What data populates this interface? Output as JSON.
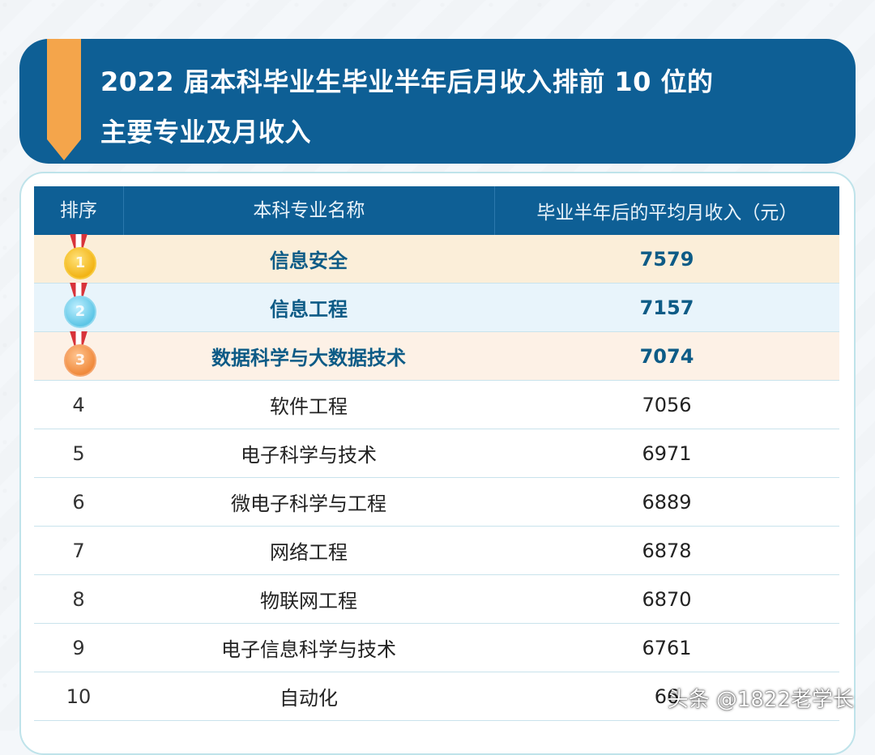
{
  "header": {
    "title_line1": "2022 届本科毕业生毕业半年后月收入排前 10 位的",
    "title_line2": "主要专业及月收入"
  },
  "table": {
    "columns": [
      "排序",
      "本科专业名称",
      "毕业半年后的平均月收入（元）"
    ],
    "rows": [
      {
        "rank": "1",
        "major": "信息安全",
        "income": "7579"
      },
      {
        "rank": "2",
        "major": "信息工程",
        "income": "7157"
      },
      {
        "rank": "3",
        "major": "数据科学与大数据技术",
        "income": "7074"
      },
      {
        "rank": "4",
        "major": "软件工程",
        "income": "7056"
      },
      {
        "rank": "5",
        "major": "电子科学与技术",
        "income": "6971"
      },
      {
        "rank": "6",
        "major": "微电子科学与工程",
        "income": "6889"
      },
      {
        "rank": "7",
        "major": "网络工程",
        "income": "6878"
      },
      {
        "rank": "8",
        "major": "物联网工程",
        "income": "6870"
      },
      {
        "rank": "9",
        "major": "电子信息科学与技术",
        "income": "6761"
      },
      {
        "rank": "10",
        "major": "自动化",
        "income": "66"
      }
    ]
  },
  "watermark": "头条 @1822老学长",
  "colors": {
    "header_bg": "#0e5f95",
    "ribbon": "#f4a54b",
    "highlight_text": "#0d5b86",
    "row1_bg": "#fbeed9",
    "row2_bg": "#e8f4fb",
    "row3_bg": "#fdf1e6"
  },
  "icons": [
    "gold-medal-icon",
    "silver-medal-icon",
    "bronze-medal-icon"
  ],
  "chart_data": {
    "type": "table",
    "title": "2022 届本科毕业生毕业半年后月收入排前 10 位的主要专业及月收入",
    "columns": [
      "排序",
      "本科专业名称",
      "毕业半年后的平均月收入（元）"
    ],
    "categories": [
      "信息安全",
      "信息工程",
      "数据科学与大数据技术",
      "软件工程",
      "电子科学与技术",
      "微电子科学与工程",
      "网络工程",
      "物联网工程",
      "电子信息科学与技术",
      "自动化"
    ],
    "values": [
      7579,
      7157,
      7074,
      7056,
      6971,
      6889,
      6878,
      6870,
      6761,
      null
    ]
  }
}
